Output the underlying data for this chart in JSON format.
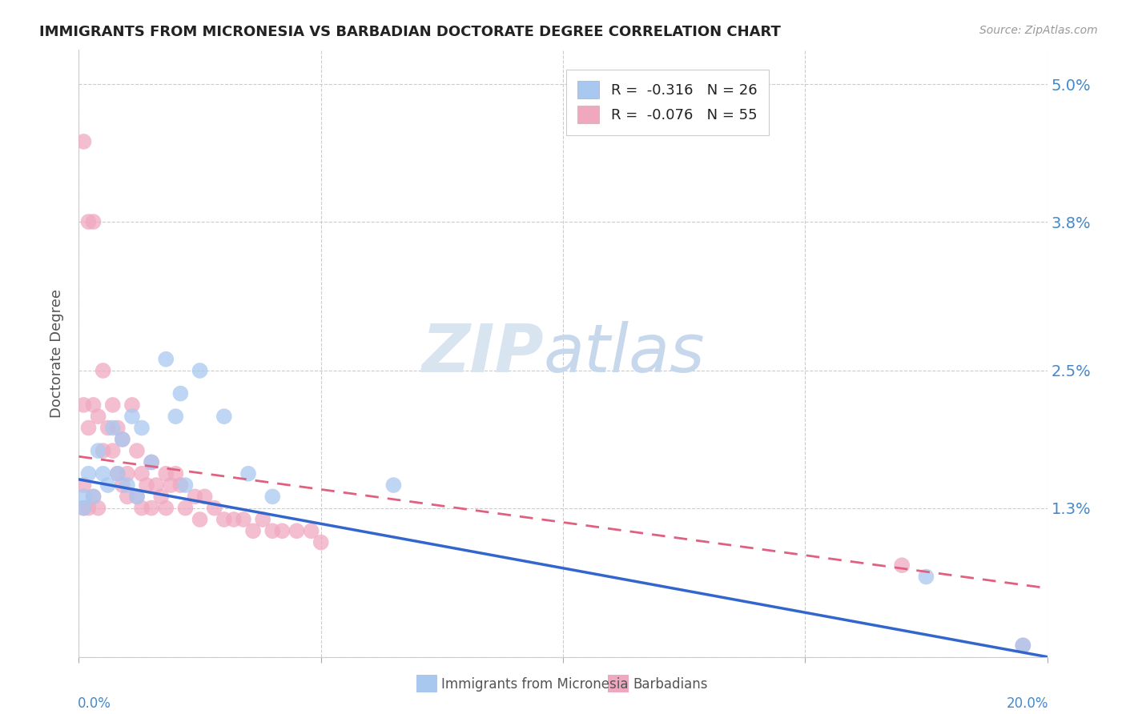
{
  "title": "IMMIGRANTS FROM MICRONESIA VS BARBADIAN DOCTORATE DEGREE CORRELATION CHART",
  "source": "Source: ZipAtlas.com",
  "ylabel": "Doctorate Degree",
  "ytick_vals": [
    0.0,
    0.013,
    0.025,
    0.038,
    0.05
  ],
  "ytick_labels": [
    "",
    "1.3%",
    "2.5%",
    "3.8%",
    "5.0%"
  ],
  "xlim": [
    0.0,
    0.2
  ],
  "ylim": [
    0.0,
    0.053
  ],
  "blue_color": "#a8c8f0",
  "pink_color": "#f0a8c0",
  "blue_line_color": "#3366cc",
  "pink_line_color": "#e06080",
  "blue_scatter_x": [
    0.001,
    0.001,
    0.002,
    0.003,
    0.004,
    0.005,
    0.006,
    0.007,
    0.008,
    0.009,
    0.01,
    0.011,
    0.012,
    0.013,
    0.015,
    0.018,
    0.02,
    0.021,
    0.022,
    0.025,
    0.03,
    0.035,
    0.04,
    0.065,
    0.175,
    0.195
  ],
  "blue_scatter_y": [
    0.014,
    0.013,
    0.016,
    0.014,
    0.018,
    0.016,
    0.015,
    0.02,
    0.016,
    0.019,
    0.015,
    0.021,
    0.014,
    0.02,
    0.017,
    0.026,
    0.021,
    0.023,
    0.015,
    0.025,
    0.021,
    0.016,
    0.014,
    0.015,
    0.007,
    0.001
  ],
  "pink_scatter_x": [
    0.001,
    0.001,
    0.001,
    0.001,
    0.002,
    0.002,
    0.002,
    0.003,
    0.003,
    0.003,
    0.004,
    0.004,
    0.005,
    0.005,
    0.006,
    0.007,
    0.007,
    0.008,
    0.008,
    0.009,
    0.009,
    0.01,
    0.01,
    0.011,
    0.012,
    0.012,
    0.013,
    0.013,
    0.014,
    0.015,
    0.015,
    0.016,
    0.017,
    0.018,
    0.018,
    0.019,
    0.02,
    0.021,
    0.022,
    0.024,
    0.025,
    0.026,
    0.028,
    0.03,
    0.032,
    0.034,
    0.036,
    0.038,
    0.04,
    0.042,
    0.045,
    0.048,
    0.05,
    0.17,
    0.195
  ],
  "pink_scatter_y": [
    0.045,
    0.022,
    0.015,
    0.013,
    0.038,
    0.02,
    0.013,
    0.038,
    0.022,
    0.014,
    0.021,
    0.013,
    0.025,
    0.018,
    0.02,
    0.022,
    0.018,
    0.02,
    0.016,
    0.019,
    0.015,
    0.016,
    0.014,
    0.022,
    0.018,
    0.014,
    0.016,
    0.013,
    0.015,
    0.017,
    0.013,
    0.015,
    0.014,
    0.016,
    0.013,
    0.015,
    0.016,
    0.015,
    0.013,
    0.014,
    0.012,
    0.014,
    0.013,
    0.012,
    0.012,
    0.012,
    0.011,
    0.012,
    0.011,
    0.011,
    0.011,
    0.011,
    0.01,
    0.008,
    0.001
  ],
  "blue_trend_x0": 0.0,
  "blue_trend_y0": 0.0155,
  "blue_trend_x1": 0.2,
  "blue_trend_y1": 0.0,
  "pink_trend_x0": 0.0,
  "pink_trend_y0": 0.0175,
  "pink_trend_x1": 0.2,
  "pink_trend_y1": 0.006
}
